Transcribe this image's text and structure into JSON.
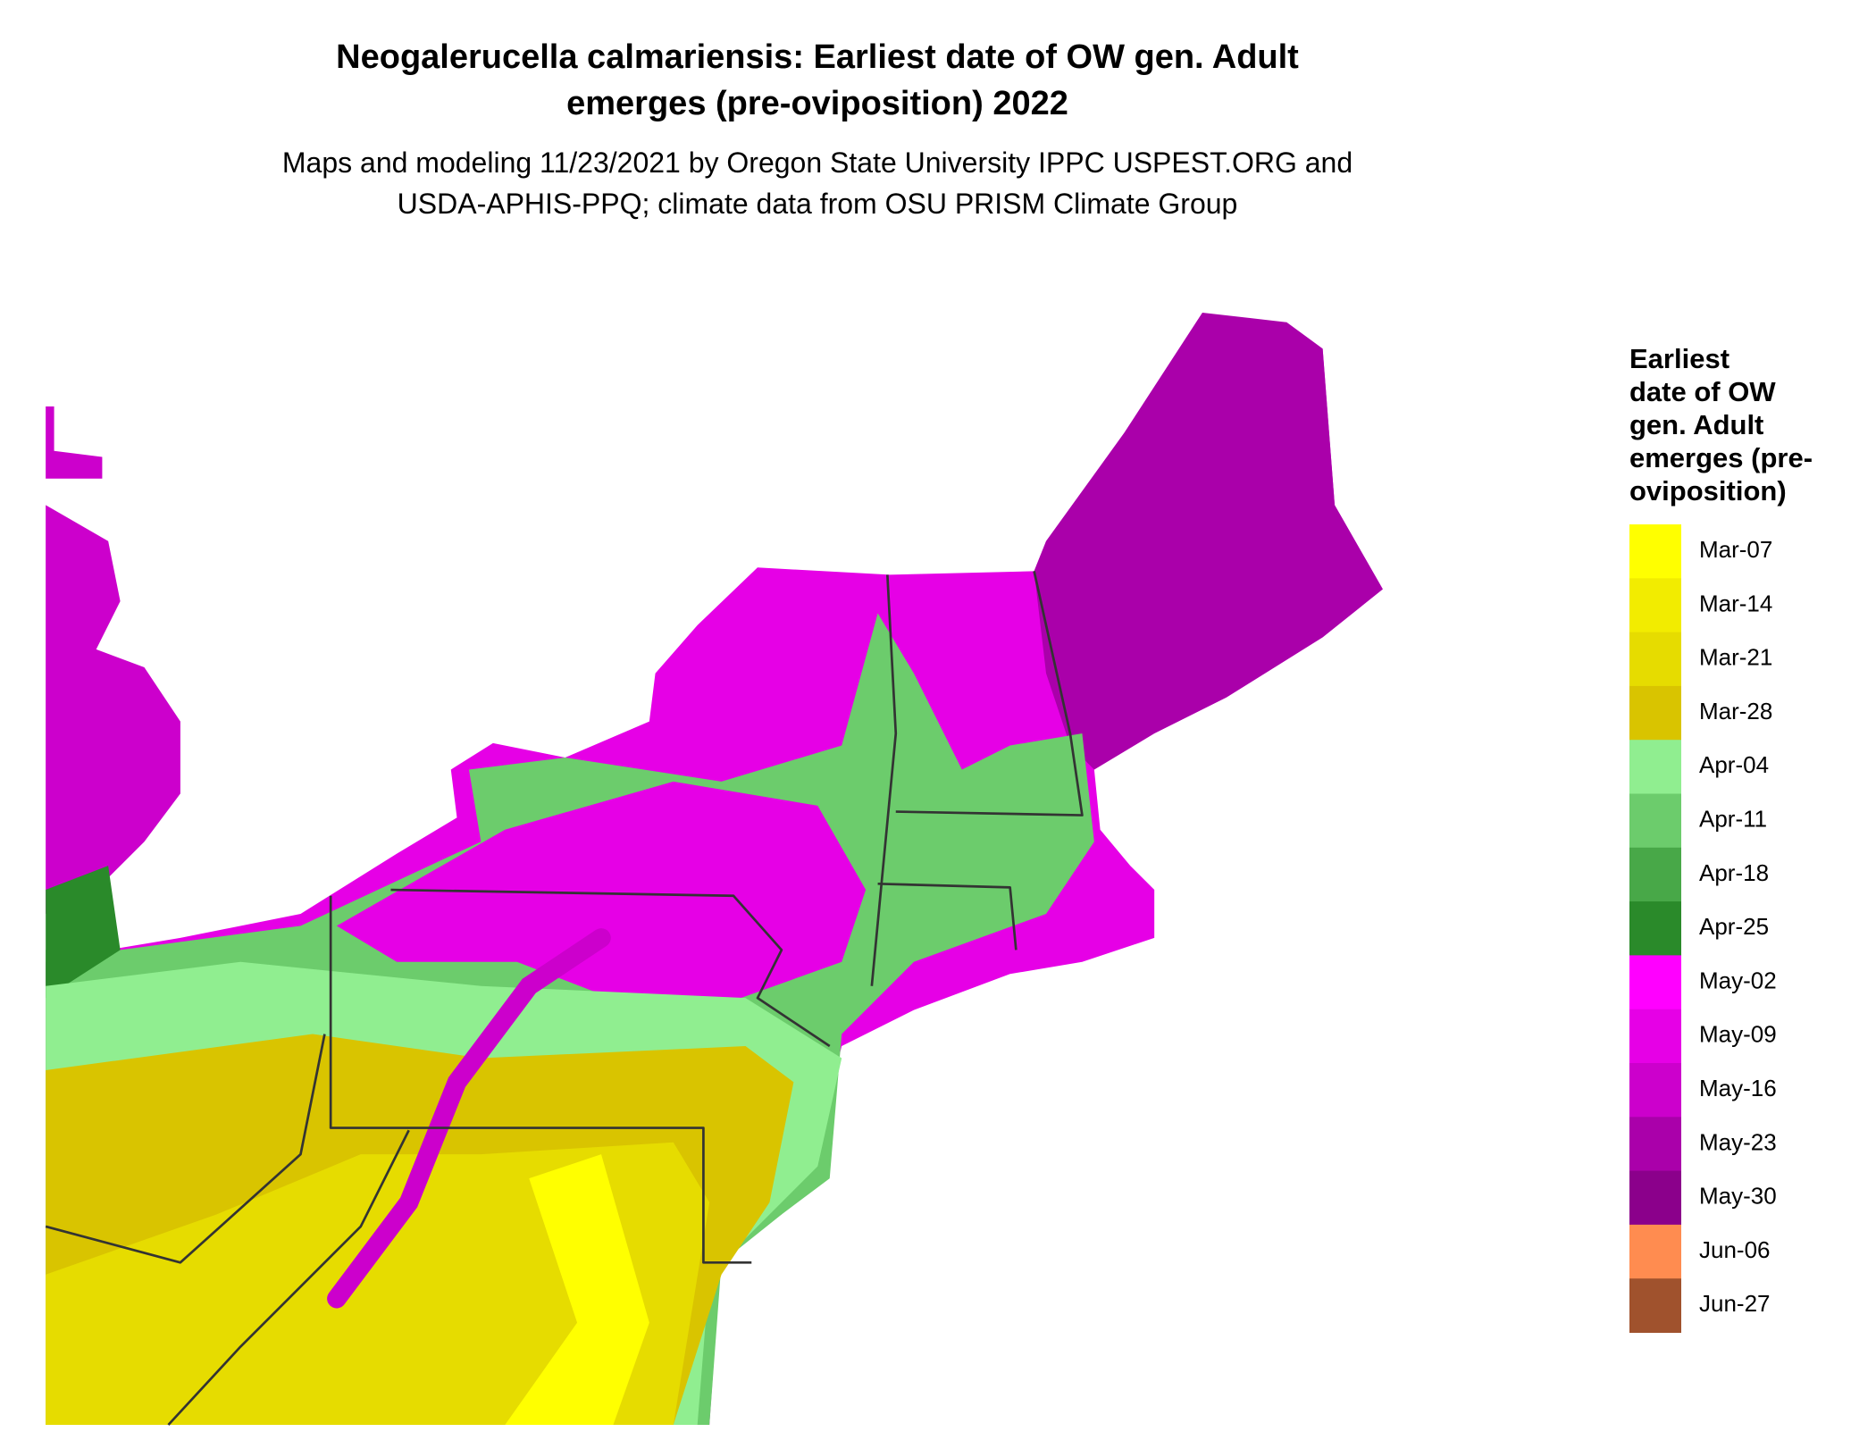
{
  "title": [
    "Neogalerucella calmariensis: Earliest date of OW gen. Adult",
    "emerges (pre-oviposition) 2022"
  ],
  "subtitle": [
    "Maps and modeling 11/23/2021 by Oregon State University IPPC USPEST.ORG and",
    "USDA-APHIS-PPQ; climate data from OSU PRISM Climate Group"
  ],
  "legend": {
    "title": [
      "Earliest",
      "date of OW",
      "gen. Adult",
      "emerges (pre-",
      "oviposition)"
    ],
    "items": [
      {
        "label": "Mar-07",
        "color": "#FFFF00"
      },
      {
        "label": "Mar-14",
        "color": "#F2EC00"
      },
      {
        "label": "Mar-21",
        "color": "#E6DC00"
      },
      {
        "label": "Mar-28",
        "color": "#D9C400"
      },
      {
        "label": "Apr-04",
        "color": "#90EE90"
      },
      {
        "label": "Apr-11",
        "color": "#6CCC6C"
      },
      {
        "label": "Apr-18",
        "color": "#48A848"
      },
      {
        "label": "Apr-25",
        "color": "#2A8A2A"
      },
      {
        "label": "May-02",
        "color": "#FF00FF"
      },
      {
        "label": "May-09",
        "color": "#E600E6"
      },
      {
        "label": "May-16",
        "color": "#CC00CC"
      },
      {
        "label": "May-23",
        "color": "#AA00AA"
      },
      {
        "label": "May-30",
        "color": "#8B008B"
      },
      {
        "label": "Jun-06",
        "color": "#FF8C50"
      },
      {
        "label": "Jun-27",
        "color": "#A0522D"
      }
    ]
  }
}
